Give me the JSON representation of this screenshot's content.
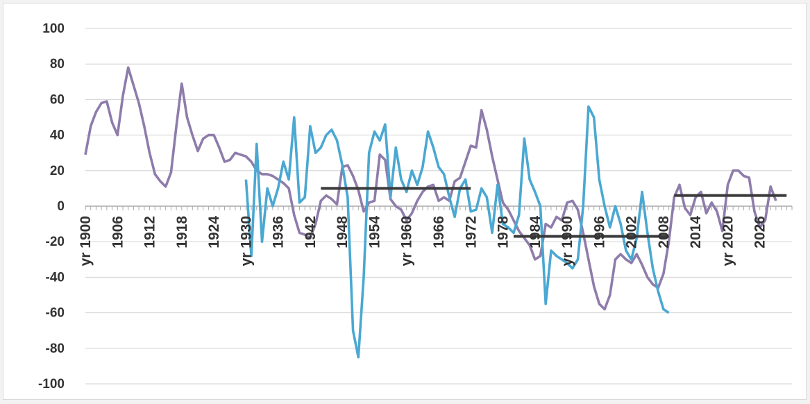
{
  "chart_data": {
    "type": "line",
    "title": "",
    "xlabel": "",
    "ylabel": "",
    "x_tick_labels": [
      "yr 1900",
      "1906",
      "1912",
      "1918",
      "1924",
      "yr 1930",
      "1936",
      "1942",
      "1948",
      "1954",
      "yr 1960",
      "1966",
      "1972",
      "1978",
      "1984",
      "yr 1990",
      "1996",
      "2002",
      "2008",
      "2014",
      "yr 2020",
      "2026"
    ],
    "ylim": [
      -100,
      100
    ],
    "y_ticks": [
      100,
      80,
      60,
      40,
      20,
      0,
      -20,
      -40,
      -60,
      -80,
      -100
    ],
    "grid": true,
    "legend": "none",
    "series": [
      {
        "color": "#8e7cab",
        "start_year": 1900,
        "values": [
          29,
          45,
          53,
          58,
          59,
          47,
          40,
          62,
          78,
          68,
          58,
          45,
          30,
          18,
          14,
          11,
          19,
          45,
          69,
          50,
          40,
          31,
          38,
          40,
          40,
          33,
          25,
          26,
          30,
          29,
          28,
          25,
          20,
          18,
          18,
          17,
          15,
          13,
          10,
          -5,
          -15,
          -16,
          -18,
          -10,
          3,
          6,
          4,
          1,
          22,
          23,
          17,
          9,
          -3,
          2,
          3,
          29,
          26,
          4,
          0,
          -2,
          -8,
          -4,
          3,
          8,
          11,
          12,
          3,
          5,
          3,
          14,
          16,
          25,
          34,
          33,
          54,
          43,
          28,
          15,
          2,
          -2,
          -8,
          -14,
          -18,
          -22,
          -30,
          -28,
          -10,
          -12,
          -6,
          -8,
          2,
          3,
          -2,
          -15,
          -30,
          -45,
          -55,
          -58,
          -50,
          -30,
          -27,
          -30,
          -32,
          -27,
          -33,
          -40,
          -44,
          -46,
          -38,
          -20,
          5,
          12,
          -1,
          -5,
          5,
          8,
          -4,
          2,
          -3,
          -14,
          12,
          20,
          20,
          17,
          16,
          -3,
          -12,
          -8,
          11,
          3
        ]
      },
      {
        "color": "#4aa8d2",
        "start_year": 1930,
        "values": [
          15,
          -28,
          35,
          -20,
          10,
          0,
          10,
          25,
          15,
          50,
          2,
          5,
          45,
          30,
          33,
          40,
          43,
          37,
          23,
          5,
          -70,
          -85,
          -40,
          30,
          42,
          37,
          46,
          5,
          33,
          15,
          8,
          20,
          12,
          22,
          42,
          33,
          22,
          18,
          5,
          -6,
          10,
          15,
          -3,
          -2,
          10,
          5,
          -15,
          12,
          -10,
          -12,
          -15,
          -5,
          38,
          15,
          8,
          0,
          -55,
          -25,
          -28,
          -30,
          -32,
          -35,
          -30,
          0,
          56,
          50,
          15,
          0,
          -12,
          0,
          -10,
          -25,
          -30,
          -18,
          8,
          -15,
          -35,
          -48,
          -58,
          -60
        ]
      }
    ],
    "mean_lines": [
      {
        "color": "#3a3a3a",
        "from_year": 1944,
        "to_year": 1972,
        "value": 10
      },
      {
        "color": "#3a3a3a",
        "from_year": 1980,
        "to_year": 2009,
        "value": -17
      },
      {
        "color": "#3a3a3a",
        "from_year": 2010,
        "to_year": 2031,
        "value": 6
      }
    ]
  }
}
